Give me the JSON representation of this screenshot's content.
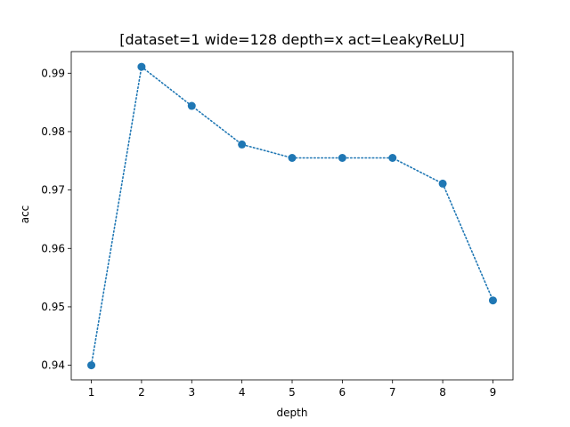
{
  "chart_data": {
    "type": "line",
    "title": "[dataset=1 wide=128 depth=x act=LeakyReLU]",
    "xlabel": "depth",
    "ylabel": "acc",
    "x": [
      1,
      2,
      3,
      4,
      5,
      6,
      7,
      8,
      9
    ],
    "series": [
      {
        "values": [
          0.94,
          0.9911,
          0.9844,
          0.9778,
          0.9755,
          0.9755,
          0.9755,
          0.9711,
          0.9511
        ]
      }
    ],
    "xticks": [
      "1",
      "2",
      "3",
      "4",
      "5",
      "6",
      "7",
      "8",
      "9"
    ],
    "yticks": [
      "0.94",
      "0.95",
      "0.96",
      "0.97",
      "0.98",
      "0.99"
    ],
    "xlim": [
      0.6,
      9.4
    ],
    "ylim": [
      0.9375,
      0.9937
    ],
    "grid": false,
    "line_style": "dotted",
    "marker": "circle",
    "color": "#1f77b4"
  }
}
